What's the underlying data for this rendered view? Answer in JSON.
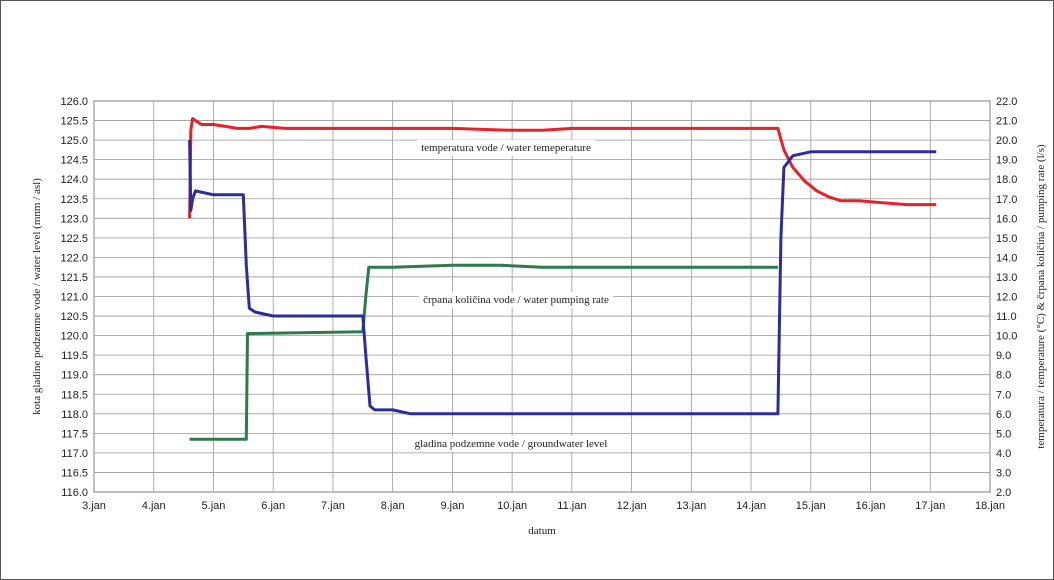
{
  "chart_data": {
    "type": "line",
    "xlabel": "datum",
    "ylabel_left": "kota gladine podzemne vode / water level (mnm / asl)",
    "ylabel_right": "temperatura / temperature (°C) & črpana količina / pumping rate (l/s)",
    "x_ticks": [
      "3.jan",
      "4.jan",
      "5.jan",
      "6.jan",
      "7.jan",
      "8.jan",
      "9.jan",
      "10.jan",
      "11.jan",
      "12.jan",
      "13.jan",
      "14.jan",
      "15.jan",
      "16.jan",
      "17.jan",
      "18.jan"
    ],
    "xlim": [
      3,
      18
    ],
    "ylim_left": [
      116.0,
      126.0
    ],
    "ylim_right": [
      2.0,
      22.0
    ],
    "y_ticks_left": [
      "116.0",
      "116.5",
      "117.0",
      "117.5",
      "118.0",
      "118.5",
      "119.0",
      "119.5",
      "120.0",
      "120.5",
      "121.0",
      "121.5",
      "122.0",
      "122.5",
      "123.0",
      "123.5",
      "124.0",
      "124.5",
      "125.0",
      "125.5",
      "126.0"
    ],
    "y_ticks_right": [
      "2.0",
      "3.0",
      "4.0",
      "5.0",
      "6.0",
      "7.0",
      "8.0",
      "9.0",
      "10.0",
      "11.0",
      "12.0",
      "13.0",
      "14.0",
      "15.0",
      "16.0",
      "17.0",
      "18.0",
      "19.0",
      "20.0",
      "21.0",
      "22.0"
    ],
    "grid": true,
    "legend": "none",
    "series": [
      {
        "name": "temperatura vode / water temeperature",
        "axis": "right",
        "color": "#e8202a",
        "x": [
          4.6,
          4.62,
          4.65,
          4.7,
          4.8,
          5.0,
          5.2,
          5.4,
          5.6,
          5.8,
          6.2,
          7.0,
          8.0,
          9.0,
          10.0,
          10.5,
          11.0,
          12.0,
          13.0,
          14.0,
          14.45,
          14.55,
          14.7,
          14.9,
          15.1,
          15.3,
          15.5,
          15.8,
          16.2,
          16.6,
          17.1
        ],
        "y": [
          16.0,
          20.5,
          21.1,
          21.0,
          20.8,
          20.8,
          20.7,
          20.6,
          20.6,
          20.7,
          20.6,
          20.6,
          20.6,
          20.6,
          20.5,
          20.5,
          20.6,
          20.6,
          20.6,
          20.6,
          20.6,
          19.5,
          18.6,
          17.9,
          17.4,
          17.1,
          16.9,
          16.9,
          16.8,
          16.7,
          16.7
        ]
      },
      {
        "name": "črpana količina vode / water pumping rate",
        "axis": "right",
        "color": "#2e7a4a",
        "x": [
          4.6,
          5.55,
          5.57,
          7.5,
          7.55,
          7.6,
          8.0,
          9.0,
          9.8,
          10.5,
          11.0,
          12.0,
          13.0,
          14.0,
          14.45
        ],
        "y": [
          4.7,
          4.7,
          10.1,
          10.2,
          12.0,
          13.5,
          13.5,
          13.6,
          13.6,
          13.5,
          13.5,
          13.5,
          13.5,
          13.5,
          13.5
        ]
      },
      {
        "name": "gladina podzemne vode / groundwater level",
        "axis": "left",
        "color": "#2b2e9a",
        "x": [
          4.6,
          4.62,
          4.65,
          4.7,
          5.0,
          5.5,
          5.55,
          5.6,
          5.7,
          6.0,
          6.5,
          7.0,
          7.5,
          7.55,
          7.62,
          7.7,
          8.0,
          8.3,
          9.0,
          10.0,
          11.0,
          12.0,
          13.0,
          14.0,
          14.45,
          14.5,
          14.55,
          14.7,
          15.0,
          15.5,
          16.0,
          16.5,
          17.1
        ],
        "y": [
          125.0,
          123.2,
          123.5,
          123.7,
          123.6,
          123.6,
          121.8,
          120.7,
          120.6,
          120.5,
          120.5,
          120.5,
          120.5,
          119.5,
          118.2,
          118.1,
          118.1,
          118.0,
          118.0,
          118.0,
          118.0,
          118.0,
          118.0,
          118.0,
          118.0,
          122.5,
          124.3,
          124.6,
          124.7,
          124.7,
          124.7,
          124.7,
          124.7
        ]
      }
    ]
  }
}
